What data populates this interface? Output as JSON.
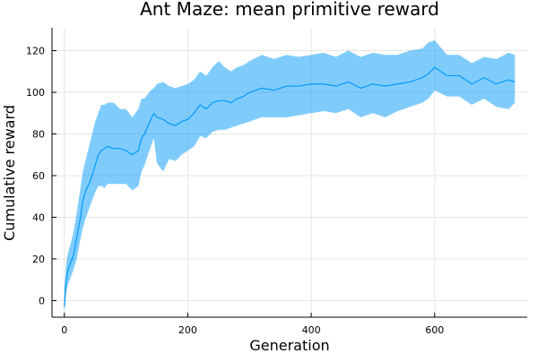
{
  "chart_data": {
    "type": "line",
    "title": "Ant Maze: mean primitive reward",
    "xlabel": "Generation",
    "ylabel": "Cumulative reward",
    "xlim": [
      -20,
      750
    ],
    "ylim": [
      -8,
      131
    ],
    "x_ticks": [
      0,
      200,
      400,
      600
    ],
    "y_ticks": [
      0,
      20,
      40,
      60,
      80,
      100,
      120
    ],
    "x_tick_labels": [
      "0",
      "200",
      "400",
      "600"
    ],
    "y_tick_labels": [
      "0",
      "20",
      "40",
      "60",
      "80",
      "100",
      "120"
    ],
    "grid": true,
    "legend": "none",
    "colors": {
      "line": "#009AFA",
      "band": "#009AFA",
      "axis": "#000000",
      "grid": "#E6E6E6",
      "text": "#000000"
    },
    "series": [
      {
        "x": [
          0,
          3,
          6,
          10,
          15,
          20,
          25,
          30,
          35,
          40,
          45,
          50,
          55,
          60,
          65,
          70,
          80,
          90,
          100,
          110,
          120,
          125,
          130,
          140,
          145,
          150,
          160,
          170,
          180,
          190,
          200,
          210,
          220,
          230,
          240,
          250,
          260,
          270,
          280,
          290,
          300,
          320,
          340,
          360,
          380,
          400,
          420,
          440,
          460,
          480,
          500,
          520,
          540,
          560,
          580,
          590,
          600,
          620,
          640,
          660,
          680,
          700,
          720,
          730
        ],
        "y": [
          -3,
          10,
          15,
          18,
          22,
          30,
          38,
          48,
          53,
          56,
          60,
          65,
          70,
          72,
          73,
          74,
          73,
          73,
          72,
          70,
          72,
          78,
          80,
          87,
          90,
          88,
          87,
          85,
          84,
          86,
          87,
          90,
          94,
          92,
          95,
          96,
          96,
          95,
          97,
          98,
          100,
          102,
          101,
          103,
          103,
          104,
          104,
          103,
          105,
          102,
          104,
          103,
          104,
          105,
          107,
          109,
          112,
          108,
          108,
          104,
          107,
          104,
          106,
          105
        ],
        "lower": [
          -6,
          4,
          8,
          11,
          15,
          20,
          28,
          35,
          40,
          44,
          48,
          52,
          55,
          55,
          54,
          56,
          56,
          56,
          56,
          53,
          55,
          62,
          65,
          74,
          78,
          66,
          62,
          68,
          67,
          70,
          72,
          74,
          79,
          78,
          81,
          82,
          82,
          83,
          84,
          85,
          86,
          88,
          88,
          88,
          89,
          90,
          91,
          90,
          92,
          88,
          90,
          88,
          91,
          93,
          95,
          97,
          101,
          98,
          98,
          94,
          97,
          93,
          92,
          95
        ],
        "upper": [
          5,
          18,
          23,
          27,
          33,
          42,
          52,
          62,
          68,
          74,
          80,
          86,
          90,
          94,
          94,
          95,
          95,
          92,
          92,
          88,
          92,
          97,
          97,
          101,
          102,
          104,
          105,
          103,
          102,
          103,
          104,
          106,
          110,
          108,
          112,
          115,
          112,
          110,
          112,
          113,
          115,
          118,
          116,
          118,
          117,
          118,
          119,
          117,
          120,
          117,
          119,
          118,
          118,
          120,
          121,
          124,
          125,
          118,
          118,
          114,
          117,
          116,
          119,
          118
        ]
      }
    ]
  }
}
